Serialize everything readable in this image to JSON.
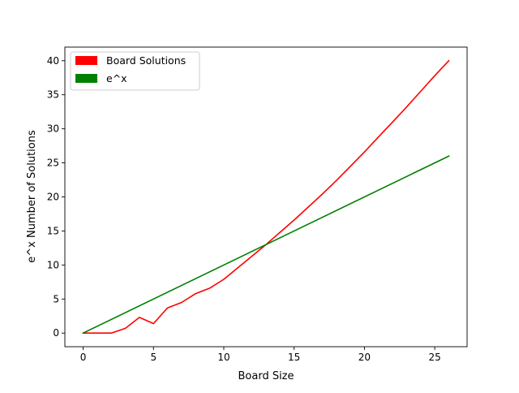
{
  "chart_data": {
    "type": "line",
    "title": "",
    "xlabel": "Board Size",
    "ylabel": "e^x Number of Solutions",
    "xlim": [
      -1.3,
      27.3
    ],
    "ylim": [
      -2.0,
      42.0
    ],
    "xticks": [
      0,
      5,
      10,
      15,
      20,
      25
    ],
    "yticks": [
      0,
      5,
      10,
      15,
      20,
      25,
      30,
      35,
      40
    ],
    "grid": false,
    "legend_placement": "top-left",
    "series": [
      {
        "name": "Board Solutions",
        "color": "#ff0000",
        "x": [
          0,
          1,
          2,
          3,
          4,
          5,
          6,
          7,
          8,
          9,
          10,
          11,
          12,
          13,
          14,
          15,
          16,
          17,
          18,
          19,
          20,
          21,
          22,
          23,
          24,
          25,
          26
        ],
        "values": [
          0,
          0,
          0,
          0.7,
          2.3,
          1.4,
          3.7,
          4.5,
          5.8,
          6.6,
          7.9,
          9.6,
          11.3,
          13.0,
          14.8,
          16.6,
          18.5,
          20.4,
          22.4,
          24.5,
          26.6,
          28.8,
          31.0,
          33.2,
          35.5,
          37.8,
          40.0
        ]
      },
      {
        "name": "e^x",
        "color": "#008000",
        "x": [
          0,
          26
        ],
        "values": [
          0,
          26
        ]
      }
    ]
  }
}
